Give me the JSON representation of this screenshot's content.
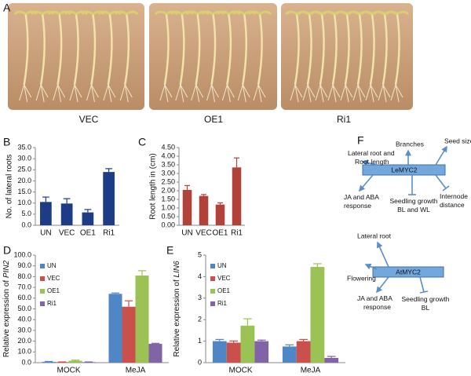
{
  "panel_labels": [
    "A",
    "B",
    "C",
    "D",
    "E",
    "F"
  ],
  "photos": [
    "VEC",
    "OE1",
    "Ri1"
  ],
  "chart_data": [
    {
      "type": "bar",
      "ylabel": "No. of lateral roots",
      "categories": [
        "UN",
        "VEC",
        "OE1",
        "Ri1"
      ],
      "values": [
        10.5,
        9.8,
        5.8,
        24.0
      ],
      "errors": [
        2.2,
        2.2,
        1.3,
        1.5
      ],
      "color": "#1c3c86",
      "ylim": [
        0,
        35
      ],
      "yticks": [
        {
          "value": 0,
          "label": "0.0"
        },
        {
          "value": 5,
          "label": "5.0"
        },
        {
          "value": 10,
          "label": "10.0"
        },
        {
          "value": 15,
          "label": "15.0"
        },
        {
          "value": 20,
          "label": "20.0"
        },
        {
          "value": 25,
          "label": "25.0"
        },
        {
          "value": 30,
          "label": "30.0"
        },
        {
          "value": 35,
          "label": "35.0"
        }
      ]
    },
    {
      "type": "bar",
      "ylabel": "Root  length in (cm)",
      "categories": [
        "UN",
        "VEC",
        "OE1",
        "Ri1"
      ],
      "values": [
        2.05,
        1.7,
        1.2,
        3.35
      ],
      "errors": [
        0.25,
        0.08,
        0.1,
        0.55
      ],
      "color": "#b0423a",
      "ylim": [
        0,
        4.5
      ],
      "yticks": [
        {
          "value": 0,
          "label": "0.00"
        },
        {
          "value": 0.5,
          "label": "0.50"
        },
        {
          "value": 1,
          "label": "1.00"
        },
        {
          "value": 1.5,
          "label": "1.50"
        },
        {
          "value": 2,
          "label": "2.00"
        },
        {
          "value": 2.5,
          "label": "2.50"
        },
        {
          "value": 3,
          "label": "3.00"
        },
        {
          "value": 3.5,
          "label": "3.50"
        },
        {
          "value": 4,
          "label": "4.00"
        },
        {
          "value": 4.5,
          "label": "4.50"
        }
      ]
    },
    {
      "type": "bar",
      "ylabel": [
        "Relative expression of ",
        "PIN2"
      ],
      "categories": [
        "MOCK",
        "MeJA"
      ],
      "series": [
        {
          "name": "UN",
          "color": "#4f86c6",
          "values": [
            0.8,
            64
          ],
          "errors": [
            0.3,
            0.8
          ]
        },
        {
          "name": "VEC",
          "color": "#c9504b",
          "values": [
            0.5,
            52
          ],
          "errors": [
            0.2,
            5.5
          ]
        },
        {
          "name": "OE1",
          "color": "#9bc255",
          "values": [
            1.8,
            81
          ],
          "errors": [
            0.6,
            4.5
          ]
        },
        {
          "name": "Ri1",
          "color": "#8064a6",
          "values": [
            0.5,
            17.5
          ],
          "errors": [
            0.2,
            0.5
          ]
        }
      ],
      "ylim": [
        0,
        100
      ],
      "yticks": [
        {
          "value": 0,
          "label": "0.0"
        },
        {
          "value": 10,
          "label": "10.0"
        },
        {
          "value": 20,
          "label": "20.0"
        },
        {
          "value": 30,
          "label": "30.0"
        },
        {
          "value": 40,
          "label": "40.0"
        },
        {
          "value": 50,
          "label": "50.0"
        },
        {
          "value": 60,
          "label": "60.0"
        },
        {
          "value": 70,
          "label": "70.0"
        },
        {
          "value": 80,
          "label": "80.0"
        },
        {
          "value": 90,
          "label": "90.0"
        },
        {
          "value": 100,
          "label": "100.0"
        }
      ]
    },
    {
      "type": "bar",
      "ylabel": [
        "Relative expression of ",
        "LIN6"
      ],
      "categories": [
        "MOCK",
        "MeJA"
      ],
      "series": [
        {
          "name": "UN",
          "color": "#4f86c6",
          "values": [
            1.0,
            0.75
          ],
          "errors": [
            0.08,
            0.08
          ]
        },
        {
          "name": "VEC",
          "color": "#c9504b",
          "values": [
            0.93,
            1.0
          ],
          "errors": [
            0.08,
            0.08
          ]
        },
        {
          "name": "OE1",
          "color": "#9bc255",
          "values": [
            1.72,
            4.45
          ],
          "errors": [
            0.32,
            0.15
          ]
        },
        {
          "name": "Ri1",
          "color": "#8064a6",
          "values": [
            1.0,
            0.22
          ],
          "errors": [
            0.05,
            0.07
          ]
        }
      ],
      "ylim": [
        0,
        5
      ],
      "yticks": [
        0,
        1,
        2,
        3,
        4,
        5
      ]
    }
  ],
  "diagram": {
    "top": {
      "center": "LeMYC2",
      "nodes": [
        [
          "Lateral root and",
          "Root length"
        ],
        [
          "Branches"
        ],
        [
          "Seed size"
        ],
        [
          "JA and ABA",
          "response"
        ],
        [
          "Seedling growth",
          "BL and WL"
        ],
        [
          "Internode",
          "distance"
        ]
      ]
    },
    "bottom": {
      "center": "AtMYC2",
      "nodes": [
        [
          "Lateral root"
        ],
        [
          "Flowering"
        ],
        [
          "JA and ABA",
          "response"
        ],
        [
          "Seedling growth",
          "BL"
        ]
      ]
    }
  }
}
